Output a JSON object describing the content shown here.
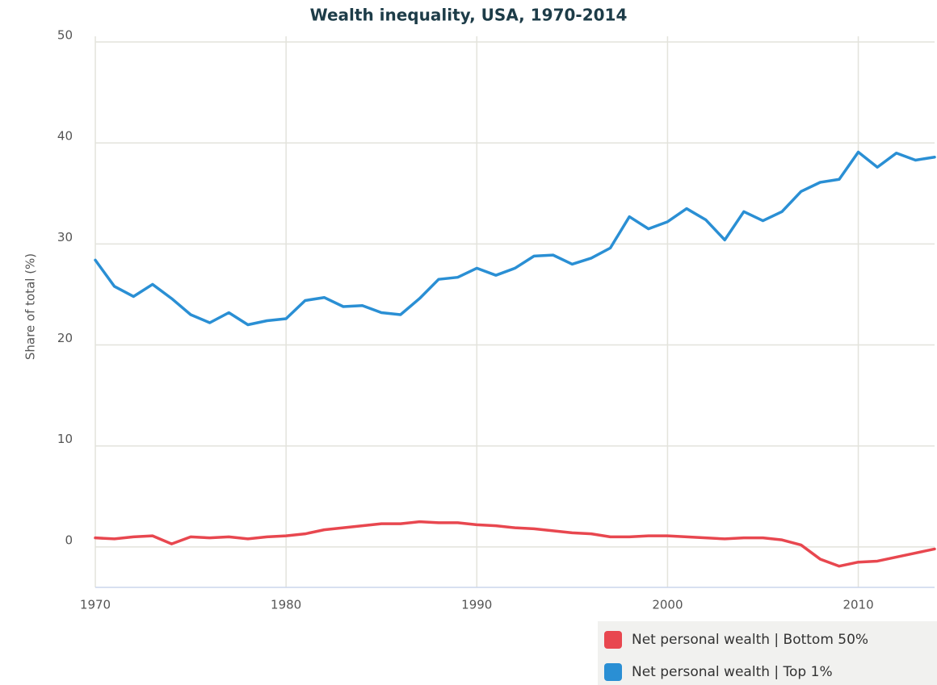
{
  "chart_data": {
    "type": "line",
    "title": "Wealth inequality, USA, 1970-2014",
    "y_label": "Share of total (%)",
    "x": [
      1970,
      1971,
      1972,
      1973,
      1974,
      1975,
      1976,
      1977,
      1978,
      1979,
      1980,
      1981,
      1982,
      1983,
      1984,
      1985,
      1986,
      1987,
      1988,
      1989,
      1990,
      1991,
      1992,
      1993,
      1994,
      1995,
      1996,
      1997,
      1998,
      1999,
      2000,
      2001,
      2002,
      2003,
      2004,
      2005,
      2006,
      2007,
      2008,
      2009,
      2010,
      2011,
      2012,
      2013,
      2014
    ],
    "series": [
      {
        "name": "Net personal wealth | Bottom 50%",
        "color": "#e8474f",
        "values": [
          0.9,
          0.8,
          1.0,
          1.1,
          0.3,
          1.0,
          0.9,
          1.0,
          0.8,
          1.0,
          1.1,
          1.3,
          1.7,
          1.9,
          2.1,
          2.3,
          2.3,
          2.5,
          2.4,
          2.4,
          2.2,
          2.1,
          1.9,
          1.8,
          1.6,
          1.4,
          1.3,
          1.0,
          1.0,
          1.1,
          1.1,
          1.0,
          0.9,
          0.8,
          0.9,
          0.9,
          0.7,
          0.2,
          -1.2,
          -1.9,
          -1.5,
          -1.4,
          -1.0,
          -0.6,
          -0.2
        ]
      },
      {
        "name": "Net personal wealth | Top 1%",
        "color": "#2a8fd4",
        "values": [
          28.4,
          25.8,
          24.8,
          26.0,
          24.6,
          23.0,
          22.2,
          23.2,
          22.0,
          22.4,
          22.6,
          24.4,
          24.7,
          23.8,
          23.9,
          23.2,
          23.0,
          24.6,
          26.5,
          26.7,
          27.6,
          26.9,
          27.6,
          28.8,
          28.9,
          28.0,
          28.6,
          29.6,
          32.7,
          31.5,
          32.2,
          33.5,
          32.4,
          30.4,
          33.2,
          32.3,
          33.2,
          35.2,
          36.1,
          36.4,
          39.1,
          37.6,
          39.0,
          38.3,
          38.6
        ]
      }
    ],
    "xlim": [
      1970,
      2014
    ],
    "xticks": [
      1970,
      1980,
      1990,
      2000,
      2010
    ],
    "ylim": [
      -4,
      50
    ],
    "yticks": [
      0,
      10,
      20,
      30,
      40,
      50
    ],
    "grid": true,
    "legend": "bottom-right"
  }
}
